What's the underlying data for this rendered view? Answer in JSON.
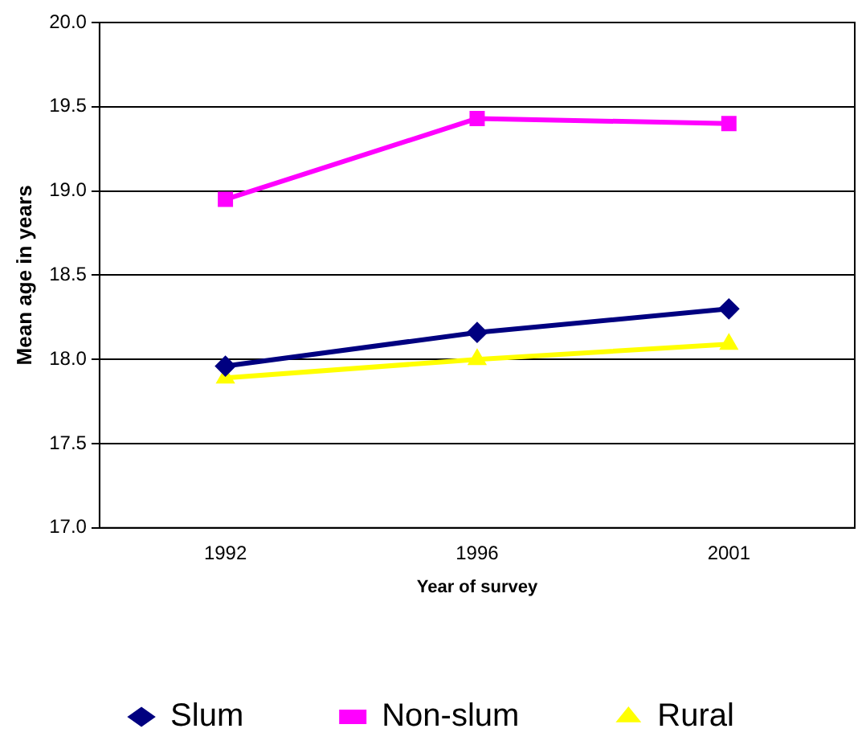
{
  "chart_data": {
    "type": "line",
    "xlabel": "Year of survey",
    "ylabel": "Mean age in years",
    "categories": [
      "1992",
      "1996",
      "2001"
    ],
    "series": [
      {
        "name": "Slum",
        "color": "#000080",
        "marker": "diamond",
        "values": [
          17.96,
          18.16,
          18.3
        ]
      },
      {
        "name": "Non-slum",
        "color": "#ff00ff",
        "marker": "square",
        "values": [
          18.95,
          19.43,
          19.4
        ]
      },
      {
        "name": "Rural",
        "color": "#ffff00",
        "marker": "triangle",
        "values": [
          17.89,
          18.0,
          18.09
        ]
      }
    ],
    "ylim": [
      17.0,
      20.0
    ],
    "yticks": [
      {
        "value": 17,
        "label": "17.0"
      },
      {
        "value": 17.5,
        "label": "17.5"
      },
      {
        "value": 18,
        "label": "18.0"
      },
      {
        "value": 18.5,
        "label": "18.5"
      },
      {
        "value": 19,
        "label": "19.0"
      },
      {
        "value": 19.5,
        "label": "19.5"
      },
      {
        "value": 20,
        "label": "20.0"
      }
    ],
    "grid": "y",
    "legend": "bottom",
    "line_style": "solid"
  }
}
